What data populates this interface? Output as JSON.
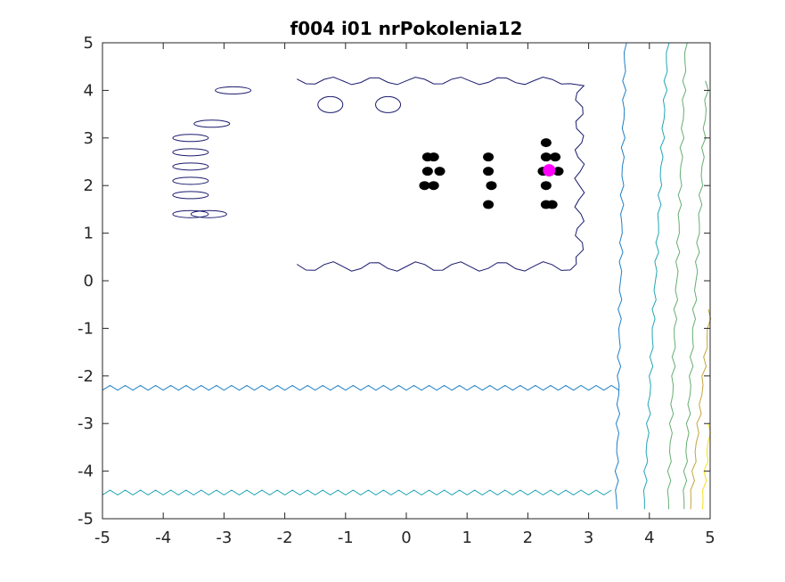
{
  "chart_data": {
    "type": "scatter",
    "title": "f004 i01 nrPokolenia12",
    "xlabel": "",
    "ylabel": "",
    "xlim": [
      -5,
      5
    ],
    "ylim": [
      -5,
      5
    ],
    "x_ticks": [
      "-5",
      "-4",
      "-3",
      "-2",
      "-1",
      "0",
      "1",
      "2",
      "3",
      "4",
      "5"
    ],
    "y_ticks": [
      "-5",
      "-4",
      "-3",
      "-2",
      "-1",
      "0",
      "1",
      "2",
      "3",
      "4",
      "5"
    ],
    "grid": false,
    "contour_colors": [
      "#1a1a6e",
      "#1f7fc6",
      "#21a6b5",
      "#66ad73",
      "#c4a43a",
      "#f5e01a"
    ],
    "series": [
      {
        "marker_color": "#000000",
        "points": [
          [
            0.35,
            2.6
          ],
          [
            0.45,
            2.6
          ],
          [
            0.35,
            2.3
          ],
          [
            0.55,
            2.3
          ],
          [
            0.3,
            2.0
          ],
          [
            0.45,
            2.0
          ],
          [
            1.35,
            2.6
          ],
          [
            1.35,
            2.3
          ],
          [
            1.4,
            2.0
          ],
          [
            1.35,
            1.6
          ],
          [
            2.3,
            2.9
          ],
          [
            2.3,
            2.6
          ],
          [
            2.45,
            2.6
          ],
          [
            2.25,
            2.3
          ],
          [
            2.5,
            2.3
          ],
          [
            2.3,
            2.0
          ],
          [
            2.3,
            1.6
          ],
          [
            2.4,
            1.6
          ]
        ]
      },
      {
        "marker_color": "#ff00ff",
        "points": [
          [
            2.35,
            2.32
          ]
        ]
      }
    ]
  }
}
